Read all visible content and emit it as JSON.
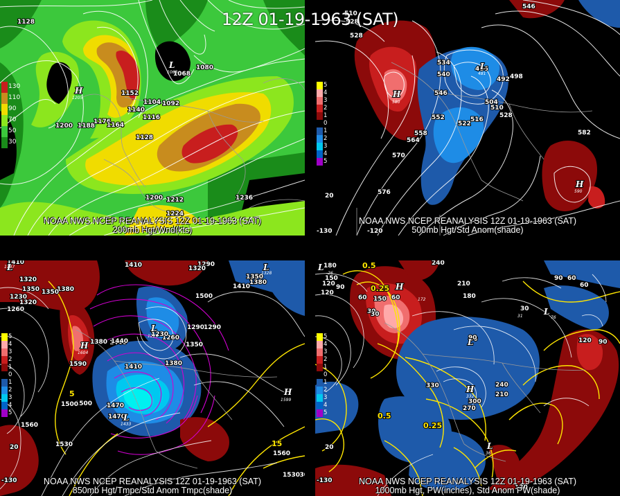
{
  "main_title": "12Z 01-19-1963 (SAT)",
  "colors": {
    "wind_black": "#000000",
    "wind_dark_green": "#1a8c1a",
    "wind_green": "#3cc83c",
    "wind_light_green": "#8ce61e",
    "wind_yellow": "#f0dc00",
    "wind_orange": "#c88c1e",
    "wind_red": "#c81e1e",
    "anom_pos_dark": "#8c0a0a",
    "anom_pos_mid": "#c81e1e",
    "anom_pos_light": "#f06e6e",
    "anom_pos_pink": "#ffaaaa",
    "anom_neg_dark": "#1e5aaa",
    "anom_neg_mid": "#1e8ce6",
    "anom_neg_light": "#00c8f0",
    "anom_neg_cyan": "#00f0f0",
    "pw_contour": "#ffe600",
    "temp_contour": "#d200d2"
  },
  "panels": [
    {
      "id": "p200mb",
      "caption_line1": "NOAA NWS NCEP REANALYSIS 12Z 01-19-1963 (SAT)",
      "caption_line2": "200mb Hgt/Wnd(kts)",
      "legend": [
        {
          "label": "130",
          "color": "#c81e1e"
        },
        {
          "label": "110",
          "color": "#c88c1e"
        },
        {
          "label": "90",
          "color": "#f0dc00"
        },
        {
          "label": "70",
          "color": "#8ce61e"
        },
        {
          "label": "50",
          "color": "#3cc83c"
        },
        {
          "label": "30",
          "color": "#1a8c1a"
        }
      ],
      "contour_labels": [
        "1128",
        "1200",
        "1188",
        "1176",
        "1164",
        "1152",
        "1140",
        "1104",
        "1116",
        "1128",
        "1092",
        "1080",
        "1068",
        "1200",
        "1212",
        "1224",
        "1236"
      ],
      "highs_lows": [
        {
          "type": "H",
          "value": "1205"
        },
        {
          "type": "L",
          "value": "1063"
        }
      ]
    },
    {
      "id": "p500mb",
      "caption_line1": "NOAA NWS NCEP REANALYSIS 12Z 01-19-1963 (SAT)",
      "caption_line2": "500mb Hgt/Std Anom(shade)",
      "legend": [
        {
          "label": "5",
          "color": "#ffff00"
        },
        {
          "label": "4",
          "color": "#ffaaaa"
        },
        {
          "label": "3",
          "color": "#f06e6e"
        },
        {
          "label": "2",
          "color": "#c81e1e"
        },
        {
          "label": "1",
          "color": "#8c0a0a"
        },
        {
          "label": "0",
          "color": "#000000"
        },
        {
          "label": "1",
          "color": "#1e5aaa"
        },
        {
          "label": "2",
          "color": "#1e8ce6"
        },
        {
          "label": "3",
          "color": "#00c8f0"
        },
        {
          "label": "4",
          "color": "#0064c8"
        },
        {
          "label": "5",
          "color": "#a000c8"
        }
      ],
      "contour_labels": [
        "510",
        "528",
        "534",
        "540",
        "546",
        "552",
        "558",
        "564",
        "570",
        "576",
        "486",
        "492",
        "498",
        "504",
        "510",
        "516",
        "522",
        "528",
        "582",
        "546",
        "528"
      ],
      "highs_lows": [
        {
          "type": "H",
          "value": "580"
        },
        {
          "type": "L",
          "value": "481"
        },
        {
          "type": "H",
          "value": "590"
        }
      ],
      "axis_labels": [
        "-120",
        "-130",
        "20"
      ]
    },
    {
      "id": "p850mb",
      "caption_line1": "NOAA NWS NCEP REANALYSIS 12Z 01-19-1963 (SAT)",
      "caption_line2": "850mb Hgt/Tmpc/Std Anom Tmpc(shade)",
      "legend": [
        {
          "label": "5",
          "color": "#ffff00"
        },
        {
          "label": "4",
          "color": "#ffaaaa"
        },
        {
          "label": "3",
          "color": "#f06e6e"
        },
        {
          "label": "2",
          "color": "#c81e1e"
        },
        {
          "label": "1",
          "color": "#8c0a0a"
        },
        {
          "label": "0",
          "color": "#000000"
        },
        {
          "label": "1",
          "color": "#1e5aaa"
        },
        {
          "label": "2",
          "color": "#1e8ce6"
        },
        {
          "label": "3",
          "color": "#00c8f0"
        },
        {
          "label": "4",
          "color": "#0064c8"
        },
        {
          "label": "5",
          "color": "#a000c8"
        }
      ],
      "contour_labels": [
        "1410",
        "1470",
        "1500",
        "1320",
        "1290",
        "1260",
        "1230",
        "1350",
        "1380",
        "1410",
        "1440",
        "1380",
        "1350",
        "1320",
        "1290",
        "1410",
        "1380",
        "1350",
        "1260",
        "1230",
        "1290",
        "1320",
        "1350",
        "1380",
        "1410",
        "1440",
        "1470",
        "1500",
        "1530",
        "1560",
        "1590",
        "1530",
        "1560",
        "1530",
        "1500",
        "5",
        "15"
      ],
      "highs_lows": [
        {
          "type": "L",
          "value": "1187"
        },
        {
          "type": "H",
          "value": "1604"
        },
        {
          "type": "L",
          "value": "1229"
        },
        {
          "type": "L",
          "value": "1328"
        },
        {
          "type": "L",
          "value": "1433"
        },
        {
          "type": "H",
          "value": "1599"
        }
      ],
      "axis_labels": [
        "-130",
        "20"
      ]
    },
    {
      "id": "p1000mb",
      "caption_line1": "NOAA NWS NCEP REANALYSIS 12Z 01-19-1963 (SAT)",
      "caption_line2": "1000mb Hgt, PW(inches), Std Anom PW(shade)",
      "legend": [
        {
          "label": "5",
          "color": "#ffff00"
        },
        {
          "label": "4",
          "color": "#ffaaaa"
        },
        {
          "label": "3",
          "color": "#f06e6e"
        },
        {
          "label": "2",
          "color": "#c81e1e"
        },
        {
          "label": "1",
          "color": "#8c0a0a"
        },
        {
          "label": "0",
          "color": "#000000"
        },
        {
          "label": "1",
          "color": "#1e5aaa"
        },
        {
          "label": "2",
          "color": "#1e8ce6"
        },
        {
          "label": "3",
          "color": "#00c8f0"
        },
        {
          "label": "4",
          "color": "#0064c8"
        },
        {
          "label": "5",
          "color": "#a000c8"
        }
      ],
      "contour_labels": [
        "180",
        "150",
        "120",
        "90",
        "60",
        "30",
        "240",
        "210",
        "180",
        "150",
        "120",
        "90",
        "60",
        "30",
        "90",
        "60",
        "330",
        "300",
        "270",
        "240",
        "210",
        "120",
        "90",
        "60",
        "30",
        "90",
        "120"
      ],
      "pw_labels": [
        "0.5",
        "0.25",
        "0.5",
        "0.25"
      ],
      "highs_lows": [
        {
          "type": "H",
          "value": "172"
        },
        {
          "type": "L",
          "value": "-26"
        },
        {
          "type": "H",
          "value": "332"
        },
        {
          "type": "L",
          "value": "31"
        },
        {
          "type": "L",
          "value": "36"
        },
        {
          "type": "L",
          "value": "76"
        }
      ],
      "axis_labels": [
        "-130",
        "20"
      ]
    }
  ]
}
